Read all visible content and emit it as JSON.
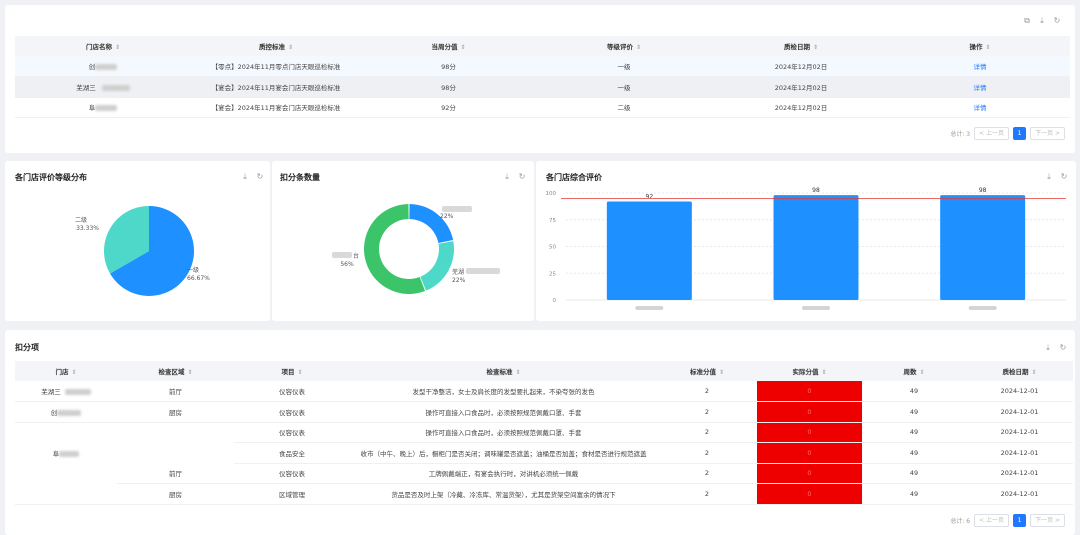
{
  "top_table": {
    "headers": [
      "门店名称",
      "质控标准",
      "当周分值",
      "等级评价",
      "质检日期",
      "操作"
    ],
    "rows": [
      {
        "store": "创",
        "standard": "【零点】2024年11月零点门店天眼巡检标准",
        "score": "98分",
        "grade": "一级",
        "date": "2024年12月02日",
        "action": "详情"
      },
      {
        "store": "芜湖三",
        "standard": "【宴会】2024年11月宴会门店天眼巡检标准",
        "score": "98分",
        "grade": "一级",
        "date": "2024年12月02日",
        "action": "详情"
      },
      {
        "store": "阜",
        "standard": "【宴会】2024年11月宴会门店天眼巡检标准",
        "score": "92分",
        "grade": "二级",
        "date": "2024年12月02日",
        "action": "详情"
      }
    ],
    "pager": {
      "total": "总计: 3",
      "prev": "< 上一页",
      "page": "1",
      "next": "下一页 >"
    }
  },
  "pie_panel": {
    "title": "各门店评价等级分布",
    "chart_data": {
      "type": "pie",
      "slices": [
        {
          "label": "一级",
          "percent": "66.67%",
          "value": 66.67,
          "color": "#1e90ff"
        },
        {
          "label": "二级",
          "percent": "33.33%",
          "value": 33.33,
          "color": "#4ed8c9"
        }
      ]
    }
  },
  "donut_panel": {
    "title": "扣分条数量",
    "chart_data": {
      "type": "pie",
      "slices": [
        {
          "label": "",
          "percent": "22%",
          "value": 22,
          "color": "#1e90ff"
        },
        {
          "label": "芜湖",
          "percent": "22%",
          "value": 22,
          "color": "#4ed8c9"
        },
        {
          "label": "台",
          "percent": "56%",
          "value": 56,
          "color": "#3cc46a"
        }
      ]
    }
  },
  "bar_panel": {
    "title": "各门店综合评价",
    "chart_data": {
      "type": "bar",
      "values": [
        92,
        98,
        98
      ],
      "ylim": [
        0,
        100
      ],
      "yticks": [
        0,
        25,
        50,
        75,
        100
      ],
      "reference_line": 95,
      "bar_color": "#1e90ff",
      "line_color": "#e53935"
    }
  },
  "deduct_table": {
    "title": "扣分项",
    "headers": [
      "门店",
      "检查区域",
      "项目",
      "检查标准",
      "标准分值",
      "实际分值",
      "周数",
      "质检日期"
    ],
    "rows": [
      {
        "store": "芜湖三",
        "area": "前厅",
        "item": "仪容仪表",
        "standard": "发型干净整洁，女士及肩长度的发型要扎起来，不染夸张的发色",
        "std_score": "2",
        "actual": "0",
        "week": "49",
        "date": "2024-12-01"
      },
      {
        "store": "创",
        "area": "厨房",
        "item": "仪容仪表",
        "standard": "操作可直接入口食品时，必须按照规范佩戴口罩、手套",
        "std_score": "2",
        "actual": "0",
        "week": "49",
        "date": "2024-12-01"
      },
      {
        "store": "",
        "area": "",
        "item": "仪容仪表",
        "standard": "操作可直接入口食品时，必须按照规范佩戴口罩、手套",
        "std_score": "2",
        "actual": "0",
        "week": "49",
        "date": "2024-12-01"
      },
      {
        "store": "阜",
        "area": "厨房",
        "item": "食品安全",
        "standard": "收市（中午、晚上）后，橱柜门是否关闭；调味罐是否遮盖；油桶是否加盖；食材是否进行规范遮盖",
        "std_score": "2",
        "actual": "0",
        "week": "49",
        "date": "2024-12-01"
      },
      {
        "store": "",
        "area": "前厅",
        "item": "仪容仪表",
        "standard": "工牌佩戴端正，有宴会执行时，对讲机必须统一佩戴",
        "std_score": "2",
        "actual": "0",
        "week": "49",
        "date": "2024-12-01"
      },
      {
        "store": "",
        "area": "厨房",
        "item": "区域管理",
        "standard": "货品是否及时上架（冷藏、冷冻库、常温货架），尤其是货架空间富余的情况下",
        "std_score": "2",
        "actual": "0",
        "week": "49",
        "date": "2024-12-01"
      }
    ],
    "pager": {
      "total": "总计: 6",
      "prev": "< 上一页",
      "page": "1",
      "next": "下一页 >"
    }
  }
}
